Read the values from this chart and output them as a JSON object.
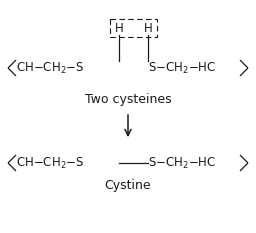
{
  "background_color": "#ffffff",
  "fig_width": 2.56,
  "fig_height": 2.33,
  "dpi": 100,
  "label_two_cysteines": "Two cysteines",
  "label_cystine": "Cystine",
  "label_h1": "H",
  "label_h2": "H",
  "font_size_formula": 8.5,
  "font_size_label": 9.0,
  "font_size_H": 8.5,
  "color": "#1a1a1a",
  "lw": 0.9,
  "dash_lw": 0.8
}
